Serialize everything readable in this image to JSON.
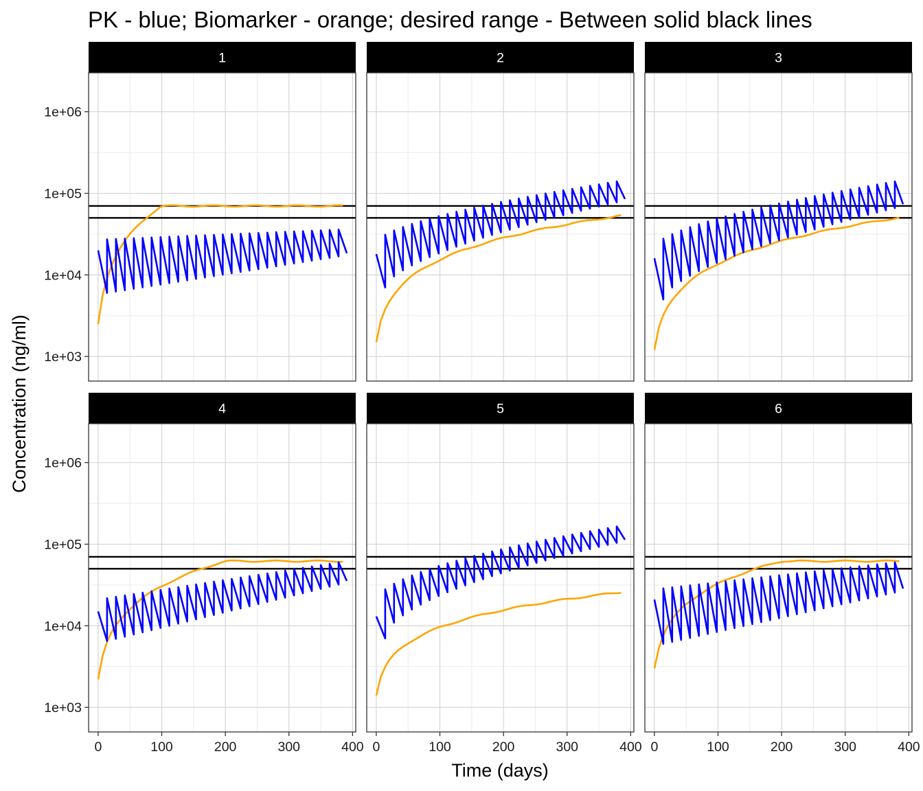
{
  "chart_data": {
    "type": "line",
    "title": "PK - blue; Biomarker - orange; desired range - Between solid black lines",
    "xlabel": "Time (days)",
    "ylabel": "Concentration (ng/ml)",
    "y_scale": "log10",
    "xlim": [
      -15,
      405
    ],
    "ylim": [
      500,
      3000000
    ],
    "x_ticks": [
      0,
      100,
      200,
      300,
      400
    ],
    "x_tick_labels": [
      "0",
      "100",
      "200",
      "300",
      "400"
    ],
    "y_ticks": [
      1000,
      10000,
      100000,
      1000000
    ],
    "y_tick_labels": [
      "1e+03",
      "1e+04",
      "1e+05",
      "1e+06"
    ],
    "grid": true,
    "desired_range": [
      50000,
      70000
    ],
    "colors": {
      "pk": "#0000ff",
      "biomarker": "#ffa500",
      "range": "#000000",
      "strip": "#000000"
    },
    "panels": [
      {
        "label": "1",
        "pk": {
          "dose_interval": 14,
          "dosing_start": 0,
          "dosing_end": 378,
          "t_end": 391,
          "start_peak": 20000,
          "peak_start": 27000,
          "peak_end": 36000,
          "trough_start": 6000,
          "trough_end": 17500,
          "tau": 1
        },
        "biomarker": {
          "start": 2500,
          "plateau": 70000,
          "tau": 1.4,
          "rise_days": 100
        }
      },
      {
        "label": "2",
        "pk": {
          "dose_interval": 14,
          "dosing_start": 0,
          "dosing_end": 378,
          "t_end": 391,
          "start_peak": 18000,
          "peak_start": 25000,
          "peak_end": 140000,
          "trough_start": 7000,
          "trough_end": 82000,
          "tau": 1.6
        },
        "biomarker": {
          "start": 1500,
          "plateau": 54000,
          "tau": 1.3,
          "rise_days": 390
        }
      },
      {
        "label": "3",
        "pk": {
          "dose_interval": 14,
          "dosing_start": 0,
          "dosing_end": 378,
          "t_end": 391,
          "start_peak": 16000,
          "peak_start": 22000,
          "peak_end": 140000,
          "trough_start": 5000,
          "trough_end": 70000,
          "tau": 1.6
        },
        "biomarker": {
          "start": 1200,
          "plateau": 51000,
          "tau": 1.3,
          "rise_days": 390
        }
      },
      {
        "label": "4",
        "pk": {
          "dose_interval": 14,
          "dosing_start": 0,
          "dosing_end": 378,
          "t_end": 391,
          "start_peak": 15000,
          "peak_start": 21000,
          "peak_end": 60000,
          "trough_start": 6500,
          "trough_end": 34000,
          "tau": 1
        },
        "biomarker": {
          "start": 2200,
          "plateau": 62000,
          "tau": 1.4,
          "rise_days": 200
        }
      },
      {
        "label": "5",
        "pk": {
          "dose_interval": 14,
          "dosing_start": 0,
          "dosing_end": 378,
          "t_end": 391,
          "start_peak": 13000,
          "peak_start": 20000,
          "peak_end": 165000,
          "trough_start": 7000,
          "trough_end": 110000,
          "tau": 1.8
        },
        "biomarker": {
          "start": 1400,
          "plateau": 26000,
          "tau": 1.1,
          "rise_days": 390
        }
      },
      {
        "label": "6",
        "pk": {
          "dose_interval": 14,
          "dosing_start": 0,
          "dosing_end": 378,
          "t_end": 391,
          "start_peak": 21000,
          "peak_start": 28000,
          "peak_end": 60000,
          "trough_start": 6000,
          "trough_end": 27000,
          "tau": 1
        },
        "biomarker": {
          "start": 3000,
          "plateau": 62000,
          "tau": 1.4,
          "rise_days": 200
        }
      }
    ]
  }
}
